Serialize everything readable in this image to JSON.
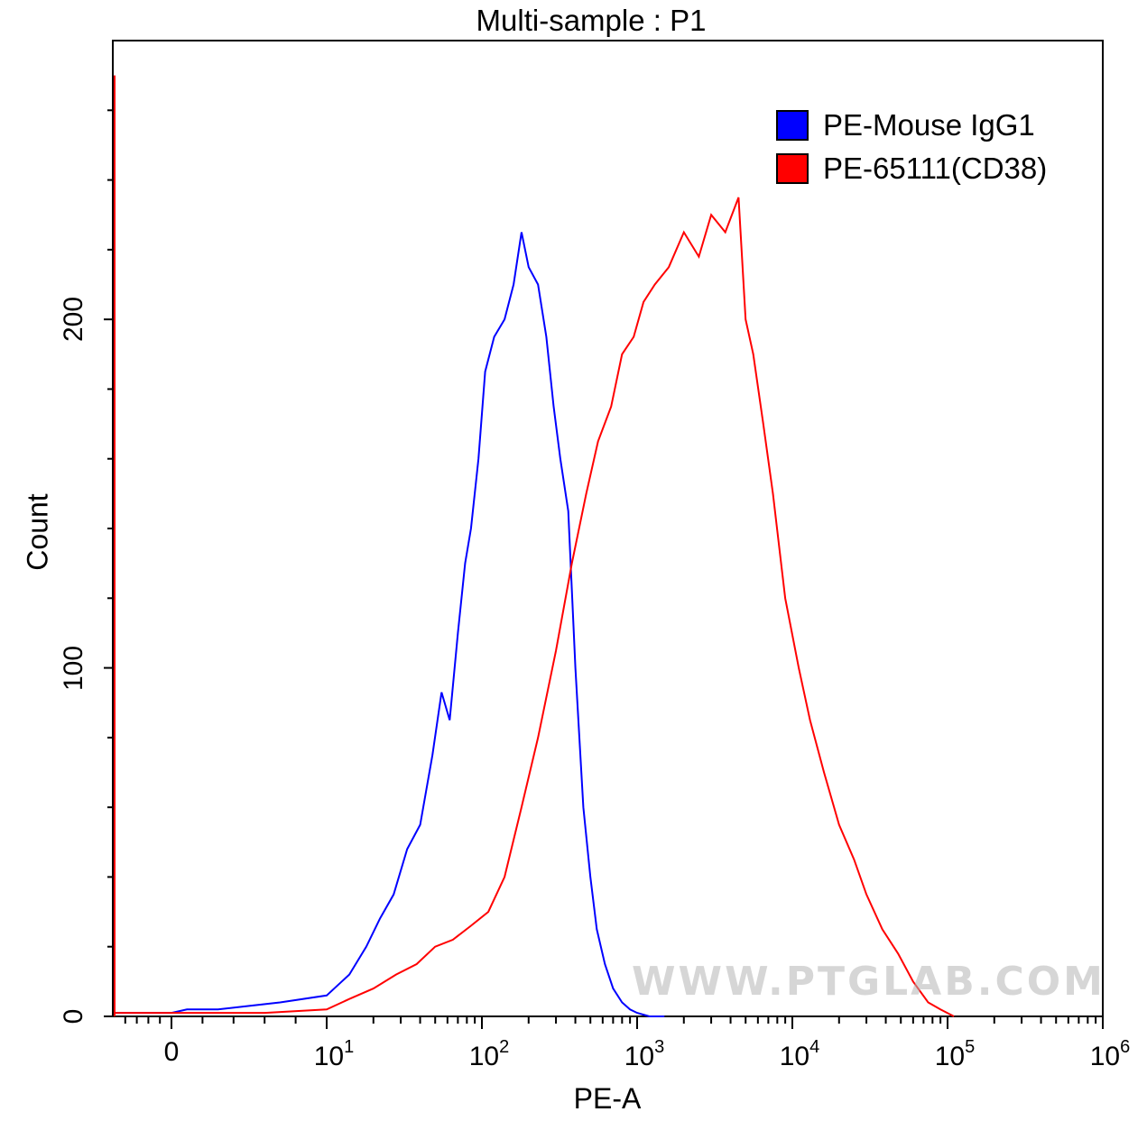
{
  "chart_data": {
    "type": "line",
    "title": "Multi-sample : P1",
    "xlabel": "PE-A",
    "ylabel": "Count",
    "x_scale": "biexponential",
    "xlim": [
      -5,
      1000000
    ],
    "ylim": [
      0,
      280
    ],
    "y_ticks": [
      "0",
      "100",
      "200"
    ],
    "x_ticks": [
      {
        "base": "0",
        "exp": ""
      },
      {
        "base": "10",
        "exp": "1"
      },
      {
        "base": "10",
        "exp": "2"
      },
      {
        "base": "10",
        "exp": "3"
      },
      {
        "base": "10",
        "exp": "4"
      },
      {
        "base": "10",
        "exp": "5"
      },
      {
        "base": "10",
        "exp": "6"
      }
    ],
    "legend_position": "top-right",
    "series": [
      {
        "name": "PE-Mouse IgG1",
        "color": "#0000ff",
        "x": [
          -5,
          0,
          1,
          3,
          5,
          7,
          10,
          14,
          18,
          22,
          27,
          33,
          40,
          48,
          55,
          62,
          70,
          78,
          85,
          95,
          105,
          120,
          140,
          160,
          180,
          200,
          230,
          260,
          290,
          320,
          360,
          400,
          450,
          500,
          550,
          620,
          700,
          800,
          900,
          1000,
          1200,
          1500
        ],
        "y": [
          1,
          1,
          2,
          2,
          3,
          4,
          6,
          12,
          20,
          28,
          35,
          48,
          55,
          75,
          93,
          85,
          110,
          130,
          140,
          160,
          185,
          195,
          200,
          210,
          225,
          215,
          210,
          195,
          175,
          160,
          145,
          100,
          60,
          40,
          25,
          15,
          8,
          4,
          2,
          1,
          0,
          0
        ]
      },
      {
        "name": "PE-65111(CD38)",
        "color": "#ff0000",
        "x": [
          -5,
          0,
          3,
          6,
          10,
          14,
          20,
          28,
          38,
          50,
          65,
          85,
          110,
          140,
          180,
          230,
          300,
          380,
          470,
          560,
          680,
          800,
          950,
          1100,
          1300,
          1600,
          2000,
          2500,
          3000,
          3700,
          4500,
          5000,
          5600,
          6500,
          7500,
          9000,
          11000,
          13000,
          16000,
          20000,
          25000,
          30000,
          38000,
          48000,
          60000,
          75000,
          90000,
          110000
        ],
        "y": [
          1,
          1,
          1,
          1,
          2,
          5,
          8,
          12,
          15,
          20,
          22,
          26,
          30,
          40,
          60,
          80,
          105,
          130,
          150,
          165,
          175,
          190,
          195,
          205,
          210,
          215,
          225,
          218,
          230,
          225,
          235,
          200,
          190,
          170,
          150,
          120,
          100,
          85,
          70,
          55,
          45,
          35,
          25,
          18,
          10,
          4,
          2,
          0
        ]
      }
    ]
  },
  "watermark": "WWW.PTGLAB.COM"
}
